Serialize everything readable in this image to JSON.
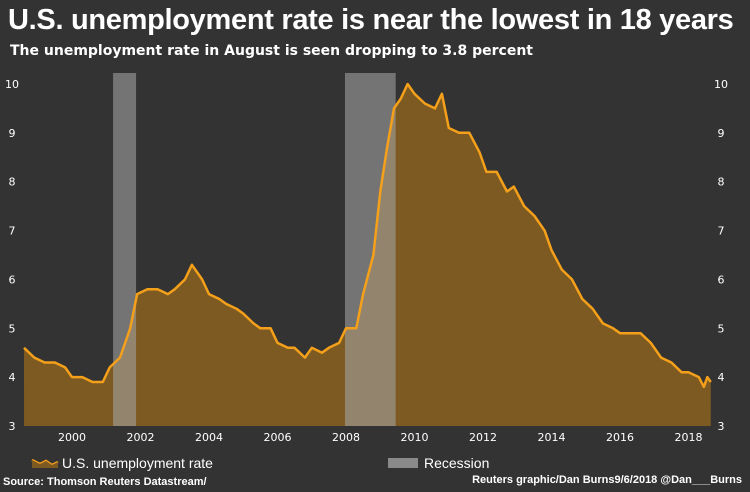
{
  "chart_data": {
    "type": "area",
    "title": "U.S. unemployment rate is near the lowest in 18 years",
    "subtitle": "The unemployment rate in August is seen dropping to 3.8 percent",
    "xlabel": "",
    "ylabel": "",
    "ylim": [
      3,
      10
    ],
    "xlim": [
      1998.6,
      2018.65
    ],
    "y_ticks": [
      "3",
      "4",
      "5",
      "6",
      "7",
      "8",
      "9",
      "10"
    ],
    "x_ticks": [
      "2000",
      "2002",
      "2004",
      "2006",
      "2008",
      "2010",
      "2012",
      "2014",
      "2016",
      "2018"
    ],
    "grid": false,
    "legend_placement": "bottom",
    "series": [
      {
        "name": "U.S. unemployment rate",
        "color": "#f5a01a",
        "fill": "#7d5a21",
        "x": [
          1998.6,
          1998.9,
          1999.2,
          1999.5,
          1999.8,
          2000.0,
          2000.3,
          2000.6,
          2000.9,
          2001.1,
          2001.4,
          2001.7,
          2001.9,
          2002.2,
          2002.5,
          2002.8,
          2003.0,
          2003.3,
          2003.5,
          2003.8,
          2004.0,
          2004.3,
          2004.5,
          2004.8,
          2005.0,
          2005.3,
          2005.5,
          2005.8,
          2006.0,
          2006.3,
          2006.5,
          2006.8,
          2007.0,
          2007.3,
          2007.5,
          2007.8,
          2008.0,
          2008.3,
          2008.5,
          2008.8,
          2009.0,
          2009.2,
          2009.4,
          2009.6,
          2009.8,
          2010.0,
          2010.3,
          2010.6,
          2010.8,
          2011.0,
          2011.3,
          2011.6,
          2011.9,
          2012.1,
          2012.4,
          2012.7,
          2012.9,
          2013.2,
          2013.5,
          2013.8,
          2014.0,
          2014.3,
          2014.6,
          2014.9,
          2015.2,
          2015.5,
          2015.8,
          2016.0,
          2016.3,
          2016.6,
          2016.9,
          2017.2,
          2017.5,
          2017.8,
          2018.0,
          2018.3,
          2018.45,
          2018.55,
          2018.65
        ],
        "values": [
          4.6,
          4.4,
          4.3,
          4.3,
          4.2,
          4.0,
          4.0,
          3.9,
          3.9,
          4.2,
          4.4,
          5.0,
          5.7,
          5.8,
          5.8,
          5.7,
          5.8,
          6.0,
          6.3,
          6.0,
          5.7,
          5.6,
          5.5,
          5.4,
          5.3,
          5.1,
          5.0,
          5.0,
          4.7,
          4.6,
          4.6,
          4.4,
          4.6,
          4.5,
          4.6,
          4.7,
          5.0,
          5.0,
          5.7,
          6.5,
          7.8,
          8.7,
          9.5,
          9.7,
          10.0,
          9.8,
          9.6,
          9.5,
          9.8,
          9.1,
          9.0,
          9.0,
          8.6,
          8.2,
          8.2,
          7.8,
          7.9,
          7.5,
          7.3,
          7.0,
          6.6,
          6.2,
          6.0,
          5.6,
          5.4,
          5.1,
          5.0,
          4.9,
          4.9,
          4.9,
          4.7,
          4.4,
          4.3,
          4.1,
          4.1,
          4.0,
          3.8,
          4.0,
          3.9
        ]
      }
    ],
    "recessions": [
      {
        "name": "Recession",
        "start": 2001.2,
        "end": 2001.87
      },
      {
        "name": "Recession",
        "start": 2007.97,
        "end": 2009.45
      }
    ]
  },
  "legend": {
    "line_label": "U.S. unemployment rate",
    "recession_label": "Recession"
  },
  "footer": {
    "source": "Source: Thomson Reuters Datastream/",
    "credit": "Reuters graphic/Dan Burns9/6/2018 @Dan___Burns"
  }
}
